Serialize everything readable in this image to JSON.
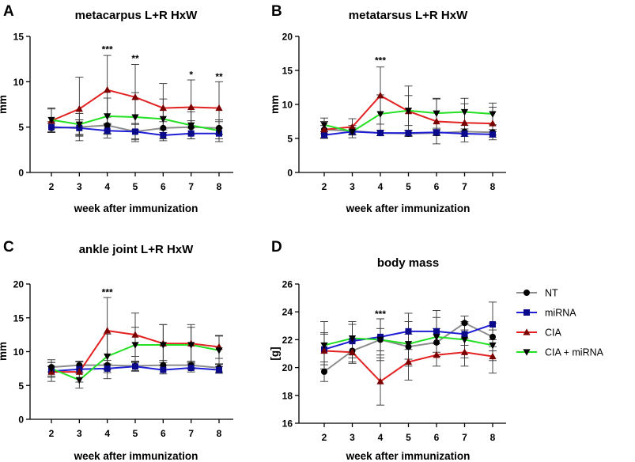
{
  "legend": [
    {
      "key": "NT",
      "label": "NT",
      "color": "#8c8c8c",
      "marker": "circle",
      "marker_color": "#000000"
    },
    {
      "key": "miRNA",
      "label": "miRNA",
      "color": "#1f1fd6",
      "marker": "square",
      "marker_color": "#0a0a8a"
    },
    {
      "key": "CIA",
      "label": "CIA",
      "color": "#e32222",
      "marker": "triangle-up",
      "marker_color": "#7a0000"
    },
    {
      "key": "CIAm",
      "label": "CIA + miRNA",
      "color": "#22e022",
      "marker": "triangle-down",
      "marker_color": "#000000"
    }
  ],
  "chart_data": [
    {
      "letter": "A",
      "title": "metacarpus L+R HxW",
      "type": "line",
      "xlabel": "week after immunization",
      "ylabel": "mm",
      "x": [
        2,
        3,
        4,
        5,
        6,
        7,
        8
      ],
      "ylim": [
        0,
        15
      ],
      "yticks": [
        0,
        5,
        10,
        15
      ],
      "series": [
        {
          "key": "NT",
          "values": [
            4.9,
            5.0,
            5.2,
            4.5,
            4.9,
            5.0,
            4.9
          ],
          "err": [
            0.5,
            0.8,
            0.9,
            0.8,
            0.7,
            0.7,
            0.7
          ]
        },
        {
          "key": "miRNA",
          "values": [
            5.0,
            4.9,
            4.6,
            4.5,
            4.1,
            4.3,
            4.3
          ],
          "err": [
            0.6,
            0.9,
            0.8,
            0.9,
            0.6,
            0.6,
            0.6
          ]
        },
        {
          "key": "CIA",
          "values": [
            5.7,
            7.0,
            9.1,
            8.3,
            7.1,
            7.2,
            7.1
          ],
          "err": [
            1.3,
            3.5,
            3.8,
            3.6,
            2.7,
            3.0,
            2.9
          ]
        },
        {
          "key": "CIAm",
          "values": [
            5.8,
            5.3,
            6.2,
            6.1,
            5.9,
            5.2,
            4.6
          ],
          "err": [
            1.3,
            1.2,
            2.0,
            2.7,
            2.2,
            1.5,
            1.2
          ]
        }
      ],
      "annotations": [
        {
          "x": 4,
          "text": "***",
          "y": 13.2
        },
        {
          "x": 5,
          "text": "**",
          "y": 12.2
        },
        {
          "x": 7,
          "text": "*",
          "y": 10.4
        },
        {
          "x": 8,
          "text": "**",
          "y": 10.2
        }
      ]
    },
    {
      "letter": "B",
      "title": "metatarsus L+R HxW",
      "type": "line",
      "xlabel": "week after immunization",
      "ylabel": "mm",
      "x": [
        2,
        3,
        4,
        5,
        6,
        7,
        8
      ],
      "ylim": [
        0,
        20
      ],
      "yticks": [
        0,
        5,
        10,
        15,
        20
      ],
      "series": [
        {
          "key": "NT",
          "values": [
            6.3,
            6.1,
            5.8,
            5.7,
            5.8,
            6.0,
            5.9
          ],
          "err": [
            0.6,
            0.5,
            0.4,
            0.4,
            0.4,
            0.4,
            0.4
          ]
        },
        {
          "key": "miRNA",
          "values": [
            5.5,
            6.0,
            5.8,
            5.8,
            5.9,
            5.7,
            5.6
          ],
          "err": [
            0.5,
            0.4,
            0.4,
            0.4,
            0.4,
            0.4,
            0.4
          ]
        },
        {
          "key": "CIA",
          "values": [
            6.3,
            6.7,
            11.3,
            9.0,
            7.5,
            7.3,
            7.2
          ],
          "err": [
            1.2,
            1.2,
            4.2,
            3.7,
            3.3,
            2.8,
            2.4
          ]
        },
        {
          "key": "CIAm",
          "values": [
            7.0,
            6.0,
            8.6,
            9.1,
            8.7,
            8.9,
            8.6
          ],
          "err": [
            1.0,
            0.9,
            2.8,
            2.2,
            2.2,
            2.0,
            1.6
          ]
        }
      ],
      "annotations": [
        {
          "x": 4,
          "text": "***",
          "y": 16.0
        }
      ]
    },
    {
      "letter": "C",
      "title": "ankle joint L+R HxW",
      "type": "line",
      "xlabel": "week after immunization",
      "ylabel": "mm",
      "x": [
        2,
        3,
        4,
        5,
        6,
        7,
        8
      ],
      "ylim": [
        0,
        20
      ],
      "yticks": [
        0,
        5,
        10,
        15,
        20
      ],
      "series": [
        {
          "key": "NT",
          "values": [
            7.7,
            8.0,
            8.0,
            7.9,
            8.0,
            8.0,
            7.6
          ],
          "err": [
            0.7,
            0.6,
            0.7,
            0.7,
            0.7,
            0.6,
            0.6
          ]
        },
        {
          "key": "miRNA",
          "values": [
            7.1,
            7.4,
            7.5,
            7.8,
            7.3,
            7.6,
            7.3
          ],
          "err": [
            0.7,
            0.6,
            0.6,
            0.7,
            0.6,
            0.6,
            0.5
          ]
        },
        {
          "key": "CIA",
          "values": [
            7.0,
            7.0,
            13.1,
            12.5,
            11.2,
            11.2,
            10.7
          ],
          "err": [
            1.4,
            1.5,
            4.9,
            3.2,
            2.8,
            2.8,
            1.7
          ]
        },
        {
          "key": "CIAm",
          "values": [
            7.5,
            5.8,
            9.3,
            11.0,
            11.0,
            11.0,
            10.2
          ],
          "err": [
            1.3,
            1.2,
            3.3,
            2.6,
            3.0,
            2.6,
            2.1
          ]
        }
      ],
      "annotations": [
        {
          "x": 4,
          "text": "***",
          "y": 18.3
        }
      ]
    },
    {
      "letter": "D",
      "title": "body mass",
      "type": "line",
      "xlabel": "week after immunization",
      "ylabel": "[g]",
      "x": [
        2,
        3,
        4,
        5,
        6,
        7,
        8
      ],
      "ylim": [
        16,
        26
      ],
      "yticks": [
        16,
        18,
        20,
        22,
        24,
        26
      ],
      "series": [
        {
          "key": "NT",
          "values": [
            19.7,
            21.2,
            22.0,
            21.5,
            21.8,
            23.2,
            22.2
          ],
          "err": [
            0.7,
            0.8,
            0.8,
            0.9,
            1.0,
            0.5,
            1.0
          ]
        },
        {
          "key": "miRNA",
          "values": [
            21.3,
            21.9,
            22.2,
            22.6,
            22.6,
            22.4,
            23.1
          ],
          "err": [
            1.1,
            1.2,
            1.3,
            1.3,
            1.5,
            0.8,
            1.6
          ]
        },
        {
          "key": "CIA",
          "values": [
            21.2,
            21.1,
            19.0,
            20.4,
            20.9,
            21.1,
            20.8
          ],
          "err": [
            1.3,
            0.8,
            1.7,
            1.3,
            0.8,
            1.0,
            1.2
          ]
        },
        {
          "key": "CIAm",
          "values": [
            21.6,
            22.1,
            22.0,
            21.7,
            22.2,
            22.0,
            21.6
          ],
          "err": [
            1.7,
            1.2,
            1.5,
            1.6,
            1.4,
            1.3,
            1.1
          ]
        }
      ],
      "annotations": [
        {
          "x": 4,
          "text": "***",
          "y": 23.6
        }
      ]
    }
  ]
}
